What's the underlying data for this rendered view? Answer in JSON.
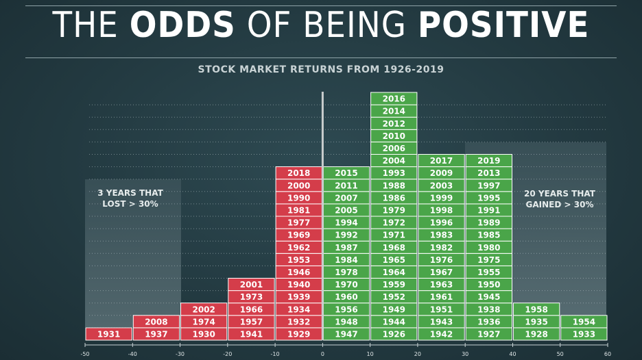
{
  "header": {
    "title_part1": "THE ",
    "title_part2": "ODDS",
    "title_part3": " OF BEING ",
    "title_part4": "POSITIVE",
    "subtitle": "STOCK MARKET RETURNS FROM 1926-2019"
  },
  "annotations": {
    "left": "3 YEARS THAT LOST > 30%",
    "right": "20 YEARS THAT GAINED > 30%"
  },
  "colors": {
    "negative": "#d43d4a",
    "positive": "#4aa549",
    "zero_line": "#c9cdcd",
    "text": "#ffffff"
  },
  "chart_data": {
    "type": "bar",
    "subtype": "stacked-year-histogram",
    "title": "THE ODDS OF BEING POSITIVE",
    "subtitle": "STOCK MARKET RETURNS FROM 1926-2019",
    "xlabel": "",
    "ylabel": "",
    "xlim": [
      -50,
      60
    ],
    "x_ticks": [
      -50,
      -40,
      -30,
      -20,
      -10,
      0,
      10,
      20,
      30,
      40,
      50,
      60
    ],
    "grid": "dotted horizontal",
    "bins": [
      {
        "range": [
          -50,
          -40
        ],
        "sign": "negative",
        "years": [
          "1931"
        ]
      },
      {
        "range": [
          -40,
          -30
        ],
        "sign": "negative",
        "years": [
          "1937",
          "2008"
        ]
      },
      {
        "range": [
          -30,
          -20
        ],
        "sign": "negative",
        "years": [
          "1930",
          "1974",
          "2002"
        ]
      },
      {
        "range": [
          -20,
          -10
        ],
        "sign": "negative",
        "years": [
          "1941",
          "1957",
          "1966",
          "1973",
          "2001"
        ]
      },
      {
        "range": [
          -10,
          0
        ],
        "sign": "negative",
        "years": [
          "1929",
          "1932",
          "1934",
          "1939",
          "1940",
          "1946",
          "1953",
          "1962",
          "1969",
          "1977",
          "1981",
          "1990",
          "2000",
          "2018"
        ]
      },
      {
        "range": [
          0,
          10
        ],
        "sign": "positive",
        "years": [
          "1947",
          "1948",
          "1956",
          "1960",
          "1970",
          "1978",
          "1984",
          "1987",
          "1992",
          "1994",
          "2005",
          "2007",
          "2011",
          "2015"
        ]
      },
      {
        "range": [
          10,
          20
        ],
        "sign": "positive",
        "years": [
          "1926",
          "1944",
          "1949",
          "1952",
          "1959",
          "1964",
          "1965",
          "1968",
          "1971",
          "1972",
          "1979",
          "1986",
          "1988",
          "1993",
          "2004",
          "2006",
          "2010",
          "2012",
          "2014",
          "2016"
        ]
      },
      {
        "range": [
          20,
          30
        ],
        "sign": "positive",
        "years": [
          "1942",
          "1943",
          "1951",
          "1961",
          "1963",
          "1967",
          "1976",
          "1982",
          "1983",
          "1996",
          "1998",
          "1999",
          "2003",
          "2009",
          "2017"
        ]
      },
      {
        "range": [
          30,
          40
        ],
        "sign": "positive",
        "years": [
          "1927",
          "1936",
          "1938",
          "1945",
          "1950",
          "1955",
          "1975",
          "1980",
          "1985",
          "1989",
          "1991",
          "1995",
          "1997",
          "2013",
          "2019"
        ]
      },
      {
        "range": [
          40,
          50
        ],
        "sign": "positive",
        "years": [
          "1928",
          "1935",
          "1958"
        ]
      },
      {
        "range": [
          50,
          60
        ],
        "sign": "positive",
        "years": [
          "1933",
          "1954"
        ]
      }
    ]
  }
}
